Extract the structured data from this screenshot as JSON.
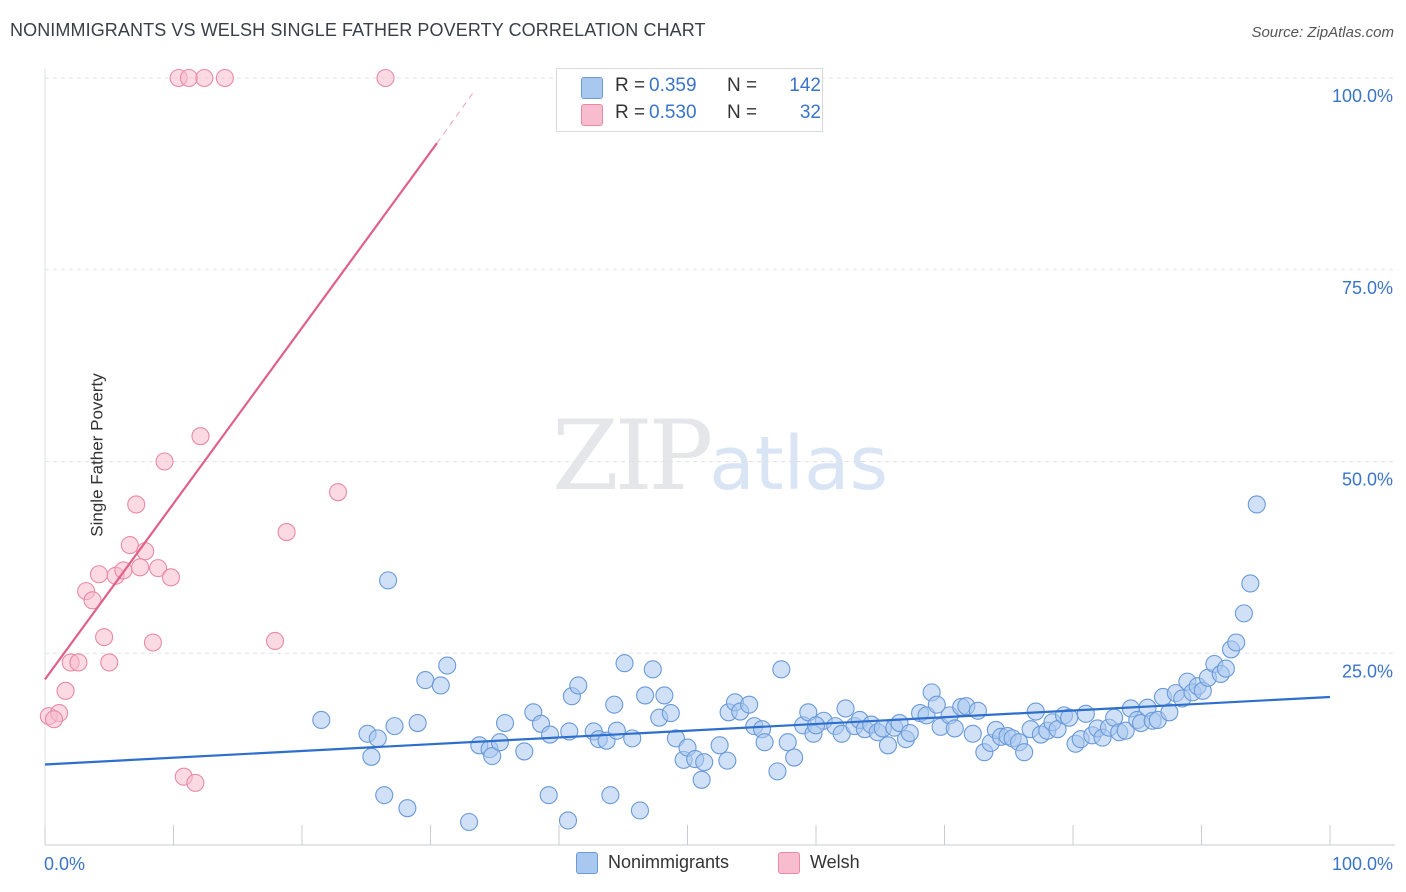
{
  "title": "NONIMMIGRANTS VS WELSH SINGLE FATHER POVERTY CORRELATION CHART",
  "source": "Source: ZipAtlas.com",
  "watermark": {
    "zip": "ZIP",
    "atlas": "atlas"
  },
  "colors": {
    "blue_fill": "#a9c8f0",
    "blue_stroke": "#6a9ad8",
    "blue_line": "#2e6fce",
    "pink_fill": "#f7bccd",
    "pink_stroke": "#e88aa6",
    "pink_line": "#e0608a",
    "grid": "#dfe2e6",
    "tick_text": "#3a74c9"
  },
  "legend_top": [
    {
      "r_label": "R =",
      "r_value": "0.359",
      "n_label": "N =",
      "n_value": "142"
    },
    {
      "r_label": "R =",
      "r_value": "0.530",
      "n_label": "N =",
      "n_value": "32"
    }
  ],
  "legend_bottom": [
    "Nonimmigrants",
    "Welsh"
  ],
  "chart_data": {
    "type": "scatter",
    "title": "NONIMMIGRANTS VS WELSH SINGLE FATHER POVERTY CORRELATION CHART",
    "xlabel": "",
    "ylabel": "Single Father Poverty",
    "xlim": [
      0,
      100
    ],
    "ylim": [
      0,
      100
    ],
    "x_tick_labels": [
      "0.0%",
      "100.0%"
    ],
    "y_tick_labels": [
      "25.0%",
      "50.0%",
      "75.0%",
      "100.0%"
    ],
    "y_ticks": [
      25,
      50,
      75,
      100
    ],
    "grid": true,
    "series": [
      {
        "name": "Nonimmigrants",
        "R": 0.359,
        "N": 142,
        "trend": {
          "x": [
            0,
            100
          ],
          "y": [
            10.5,
            19.3
          ]
        },
        "points": [
          [
            21.5,
            16.3
          ],
          [
            25.1,
            14.5
          ],
          [
            25.4,
            11.5
          ],
          [
            25.9,
            13.9
          ],
          [
            26.4,
            6.5
          ],
          [
            26.7,
            34.5
          ],
          [
            27.2,
            15.5
          ],
          [
            28.2,
            4.8
          ],
          [
            29.0,
            15.9
          ],
          [
            29.6,
            21.5
          ],
          [
            30.8,
            20.8
          ],
          [
            31.3,
            23.4
          ],
          [
            33.0,
            3.0
          ],
          [
            33.8,
            13.0
          ],
          [
            34.6,
            12.5
          ],
          [
            34.8,
            11.6
          ],
          [
            35.4,
            13.4
          ],
          [
            35.8,
            15.9
          ],
          [
            37.3,
            12.2
          ],
          [
            38.0,
            17.3
          ],
          [
            38.6,
            15.8
          ],
          [
            39.2,
            6.5
          ],
          [
            39.3,
            14.4
          ],
          [
            40.7,
            3.2
          ],
          [
            40.8,
            14.8
          ],
          [
            41.0,
            19.4
          ],
          [
            41.5,
            20.8
          ],
          [
            42.7,
            14.8
          ],
          [
            43.1,
            13.8
          ],
          [
            43.7,
            13.6
          ],
          [
            44.0,
            6.5
          ],
          [
            44.3,
            18.3
          ],
          [
            44.5,
            14.9
          ],
          [
            45.1,
            23.7
          ],
          [
            45.7,
            13.9
          ],
          [
            46.3,
            4.5
          ],
          [
            46.7,
            19.5
          ],
          [
            47.3,
            22.9
          ],
          [
            47.8,
            16.6
          ],
          [
            48.2,
            19.5
          ],
          [
            48.7,
            17.2
          ],
          [
            49.1,
            13.9
          ],
          [
            49.7,
            11.1
          ],
          [
            50.0,
            12.7
          ],
          [
            50.6,
            11.2
          ],
          [
            51.1,
            8.5
          ],
          [
            51.3,
            10.8
          ],
          [
            53.1,
            11.0
          ],
          [
            53.2,
            17.3
          ],
          [
            53.7,
            18.6
          ],
          [
            54.1,
            17.4
          ],
          [
            54.8,
            18.3
          ],
          [
            55.2,
            15.5
          ],
          [
            55.8,
            15.1
          ],
          [
            56.0,
            13.4
          ],
          [
            57.0,
            9.6
          ],
          [
            57.3,
            22.9
          ],
          [
            57.8,
            13.4
          ],
          [
            58.3,
            11.4
          ],
          [
            59.0,
            15.6
          ],
          [
            59.4,
            17.3
          ],
          [
            59.8,
            14.5
          ],
          [
            60.6,
            16.2
          ],
          [
            61.5,
            15.5
          ],
          [
            62.0,
            14.5
          ],
          [
            62.3,
            17.8
          ],
          [
            63.0,
            15.5
          ],
          [
            63.4,
            16.3
          ],
          [
            63.8,
            15.1
          ],
          [
            64.3,
            15.7
          ],
          [
            64.8,
            14.7
          ],
          [
            65.2,
            15.2
          ],
          [
            65.6,
            13.0
          ],
          [
            66.1,
            15.3
          ],
          [
            66.5,
            15.9
          ],
          [
            67.0,
            13.8
          ],
          [
            67.3,
            14.6
          ],
          [
            68.1,
            17.2
          ],
          [
            68.6,
            16.9
          ],
          [
            69.0,
            19.9
          ],
          [
            69.4,
            18.3
          ],
          [
            69.7,
            15.4
          ],
          [
            70.4,
            16.9
          ],
          [
            70.8,
            15.2
          ],
          [
            71.3,
            18.0
          ],
          [
            71.7,
            18.1
          ],
          [
            72.2,
            14.5
          ],
          [
            72.6,
            17.5
          ],
          [
            73.1,
            12.1
          ],
          [
            73.6,
            13.3
          ],
          [
            74.0,
            15.0
          ],
          [
            74.4,
            14.1
          ],
          [
            74.9,
            14.2
          ],
          [
            75.3,
            13.9
          ],
          [
            75.8,
            13.4
          ],
          [
            76.2,
            12.1
          ],
          [
            76.7,
            15.1
          ],
          [
            77.1,
            17.4
          ],
          [
            77.5,
            14.4
          ],
          [
            78.0,
            14.9
          ],
          [
            78.4,
            16.0
          ],
          [
            78.8,
            15.1
          ],
          [
            79.3,
            16.9
          ],
          [
            79.7,
            16.6
          ],
          [
            80.2,
            13.2
          ],
          [
            80.6,
            13.8
          ],
          [
            81.0,
            17.1
          ],
          [
            81.5,
            14.3
          ],
          [
            81.9,
            15.2
          ],
          [
            82.3,
            14.0
          ],
          [
            82.8,
            15.3
          ],
          [
            83.2,
            16.6
          ],
          [
            83.6,
            14.7
          ],
          [
            84.1,
            14.9
          ],
          [
            84.5,
            17.8
          ],
          [
            85.0,
            16.3
          ],
          [
            85.3,
            15.9
          ],
          [
            85.8,
            17.9
          ],
          [
            86.2,
            16.2
          ],
          [
            86.6,
            16.3
          ],
          [
            87.0,
            19.3
          ],
          [
            87.5,
            17.3
          ],
          [
            88.0,
            19.8
          ],
          [
            88.5,
            19.1
          ],
          [
            88.9,
            21.3
          ],
          [
            89.3,
            19.9
          ],
          [
            89.7,
            20.7
          ],
          [
            90.1,
            20.1
          ],
          [
            90.5,
            21.8
          ],
          [
            91.0,
            23.6
          ],
          [
            91.5,
            22.3
          ],
          [
            91.9,
            23.0
          ],
          [
            92.3,
            25.5
          ],
          [
            92.7,
            26.4
          ],
          [
            93.3,
            30.2
          ],
          [
            93.8,
            34.1
          ],
          [
            94.3,
            44.4
          ],
          [
            60.0,
            15.6
          ],
          [
            52.5,
            13.0
          ]
        ]
      },
      {
        "name": "Welsh",
        "R": 0.53,
        "N": 32,
        "trend": {
          "x": [
            0,
            30.5
          ],
          "y": [
            21.6,
            91.5
          ]
        },
        "trend_dashed": {
          "x": [
            30.5,
            33.5
          ],
          "y": [
            91.5,
            98.5
          ]
        },
        "points": [
          [
            0.3,
            16.8
          ],
          [
            1.1,
            17.2
          ],
          [
            1.6,
            20.1
          ],
          [
            2.0,
            23.8
          ],
          [
            2.6,
            23.8
          ],
          [
            3.2,
            33.1
          ],
          [
            3.7,
            31.9
          ],
          [
            4.2,
            35.3
          ],
          [
            4.6,
            27.1
          ],
          [
            5.0,
            23.8
          ],
          [
            5.5,
            35.1
          ],
          [
            6.1,
            35.8
          ],
          [
            6.6,
            39.1
          ],
          [
            7.1,
            44.4
          ],
          [
            7.4,
            36.2
          ],
          [
            7.8,
            38.3
          ],
          [
            8.4,
            26.4
          ],
          [
            8.8,
            36.1
          ],
          [
            9.3,
            50.0
          ],
          [
            9.8,
            34.9
          ],
          [
            10.4,
            100.0
          ],
          [
            10.8,
            8.9
          ],
          [
            11.2,
            100.0
          ],
          [
            11.7,
            8.1
          ],
          [
            12.1,
            53.3
          ],
          [
            12.4,
            100.0
          ],
          [
            14.0,
            100.0
          ],
          [
            17.9,
            26.6
          ],
          [
            18.8,
            40.8
          ],
          [
            22.8,
            46.0
          ],
          [
            26.5,
            100.0
          ],
          [
            0.7,
            16.4
          ]
        ]
      }
    ]
  }
}
